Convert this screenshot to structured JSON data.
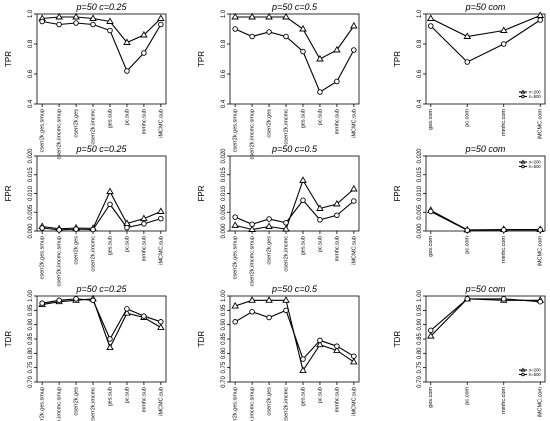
{
  "chart_data": [
    {
      "type": "line",
      "title": "p=50  c=0.25",
      "ylabel": "TPR",
      "ylim": [
        0.4,
        1.0
      ],
      "yticks": [
        0.4,
        0.6,
        0.8,
        1.0
      ],
      "categories": [
        "cserr2k.ges.smup",
        "cserr2k.imcmc.smup",
        "cserr2k.ges",
        "cserr2k.imcmc",
        "ges.sub",
        "pc.sub",
        "mmhc.sub",
        "iMCMC.sub"
      ],
      "series": [
        {
          "marker": "triangle",
          "values": [
            0.97,
            0.98,
            0.98,
            0.97,
            0.95,
            0.81,
            0.86,
            0.97
          ]
        },
        {
          "marker": "circle",
          "values": [
            0.95,
            0.93,
            0.94,
            0.93,
            0.89,
            0.62,
            0.74,
            0.93
          ]
        }
      ]
    },
    {
      "type": "line",
      "title": "p=50  c=0.5",
      "ylabel": "TPR",
      "ylim": [
        0.4,
        1.0
      ],
      "yticks": [
        0.4,
        0.6,
        0.8,
        1.0
      ],
      "categories": [
        "cserr2k.ges.smup",
        "cserr2k.imcmc.smup",
        "cserr2k.ges",
        "cserr2k.imcmc",
        "ges.sub",
        "pc.sub",
        "mmhc.sub",
        "iMCMC.sub"
      ],
      "series": [
        {
          "marker": "triangle",
          "values": [
            0.98,
            0.98,
            0.98,
            0.98,
            0.9,
            0.7,
            0.76,
            0.92
          ]
        },
        {
          "marker": "circle",
          "values": [
            0.9,
            0.85,
            0.88,
            0.85,
            0.75,
            0.48,
            0.55,
            0.76
          ]
        }
      ]
    },
    {
      "type": "line",
      "title": "p=50  com",
      "ylabel": "TPR",
      "ylim": [
        0.4,
        1.0
      ],
      "yticks": [
        0.4,
        0.6,
        0.8,
        1.0
      ],
      "categories": [
        "ges.com",
        "pc.com",
        "mmhc.com",
        "iMCMC.com"
      ],
      "legend": {
        "position": "bottom-right",
        "entries": [
          "n=200",
          "n=500"
        ]
      },
      "series": [
        {
          "marker": "triangle",
          "values": [
            0.97,
            0.85,
            0.89,
            0.99
          ]
        },
        {
          "marker": "circle",
          "values": [
            0.92,
            0.68,
            0.8,
            0.96
          ]
        }
      ]
    },
    {
      "type": "line",
      "title": "p=50  c=0.25",
      "ylabel": "FPR",
      "ylim": [
        0,
        0.02
      ],
      "yticks": [
        0.0,
        0.005,
        0.01,
        0.015,
        0.02
      ],
      "categories": [
        "cserr2k.ges.smup",
        "cserr2k.imcmc.smup",
        "cserr2k.ges",
        "cserr2k.imcmc",
        "ges.sub",
        "pc.sub",
        "mmhc.sub",
        "iMCMC.sub"
      ],
      "series": [
        {
          "marker": "triangle",
          "values": [
            0.0012,
            0.0006,
            0.0008,
            0.0007,
            0.0105,
            0.002,
            0.0033,
            0.0052
          ]
        },
        {
          "marker": "circle",
          "values": [
            0.0008,
            0.0003,
            0.0005,
            0.0004,
            0.0071,
            0.0009,
            0.0019,
            0.0033
          ]
        }
      ]
    },
    {
      "type": "line",
      "title": "p=50  c=0.5",
      "ylabel": "FPR",
      "ylim": [
        0,
        0.02
      ],
      "yticks": [
        0.0,
        0.005,
        0.01,
        0.015,
        0.02
      ],
      "categories": [
        "cserr2k.ges.smup",
        "cserr2k.imcmc.smup",
        "cserr2k.ges",
        "cserr2k.imcmc",
        "ges.sub",
        "pc.sub",
        "mmhc.sub",
        "iMCMC.sub"
      ],
      "series": [
        {
          "marker": "triangle",
          "values": [
            0.0015,
            0.0004,
            0.0012,
            0.0005,
            0.0135,
            0.006,
            0.0072,
            0.0112
          ]
        },
        {
          "marker": "circle",
          "values": [
            0.0037,
            0.0018,
            0.0032,
            0.0022,
            0.0082,
            0.003,
            0.0042,
            0.008
          ]
        }
      ]
    },
    {
      "type": "line",
      "title": "p=50  com",
      "ylabel": "FPR",
      "ylim": [
        0,
        0.02
      ],
      "yticks": [
        0.0,
        0.005,
        0.01,
        0.015,
        0.02
      ],
      "categories": [
        "ges.com",
        "pc.com",
        "mmhc.com",
        "iMCMC.com"
      ],
      "legend": {
        "position": "top-right",
        "entries": [
          "n=200",
          "n=500"
        ]
      },
      "series": [
        {
          "marker": "triangle",
          "values": [
            0.0055,
            0.0003,
            0.0004,
            0.0004
          ]
        },
        {
          "marker": "circle",
          "values": [
            0.0052,
            0.0002,
            0.0003,
            0.0003
          ]
        }
      ]
    },
    {
      "type": "line",
      "title": "p=50  c=0.25",
      "ylabel": "TDR",
      "ylim": [
        0.7,
        1.0
      ],
      "yticks": [
        0.7,
        0.75,
        0.8,
        0.85,
        0.9,
        0.95,
        1.0
      ],
      "categories": [
        "cserr2k.ges.smup",
        "cserr2k.imcmc.smup",
        "cserr2k.ges",
        "cserr2k.imcmc",
        "ges.sub",
        "pc.sub",
        "mmhc.sub",
        "iMCMC.sub"
      ],
      "series": [
        {
          "marker": "triangle",
          "values": [
            0.97,
            0.98,
            0.985,
            0.99,
            0.82,
            0.94,
            0.925,
            0.89
          ]
        },
        {
          "marker": "circle",
          "values": [
            0.975,
            0.985,
            0.99,
            0.985,
            0.85,
            0.955,
            0.93,
            0.91
          ]
        }
      ]
    },
    {
      "type": "line",
      "title": "p=50  c=0.5",
      "ylabel": "TDR",
      "ylim": [
        0.7,
        1.0
      ],
      "yticks": [
        0.7,
        0.75,
        0.8,
        0.85,
        0.9,
        0.95,
        1.0
      ],
      "categories": [
        "cserr2k.ges.smup",
        "cserr2k.imcmc.smup",
        "cserr2k.ges",
        "cserr2k.imcmc",
        "ges.sub",
        "pc.sub",
        "mmhc.sub",
        "iMCMC.sub"
      ],
      "series": [
        {
          "marker": "triangle",
          "values": [
            0.965,
            0.985,
            0.985,
            0.985,
            0.74,
            0.83,
            0.81,
            0.77
          ]
        },
        {
          "marker": "circle",
          "values": [
            0.91,
            0.945,
            0.925,
            0.95,
            0.78,
            0.845,
            0.825,
            0.79
          ]
        }
      ]
    },
    {
      "type": "line",
      "title": "p=50  com",
      "ylabel": "TDR",
      "ylim": [
        0.7,
        1.0
      ],
      "yticks": [
        0.7,
        0.75,
        0.8,
        0.85,
        0.9,
        0.95,
        1.0
      ],
      "categories": [
        "ges.com",
        "pc.com",
        "mmhc.com",
        "iMCMC.com"
      ],
      "legend": {
        "position": "bottom-right",
        "entries": [
          "n=200",
          "n=500"
        ]
      },
      "series": [
        {
          "marker": "triangle",
          "values": [
            0.86,
            0.99,
            0.985,
            0.985
          ]
        },
        {
          "marker": "circle",
          "values": [
            0.88,
            0.99,
            0.99,
            0.98
          ]
        }
      ]
    }
  ]
}
